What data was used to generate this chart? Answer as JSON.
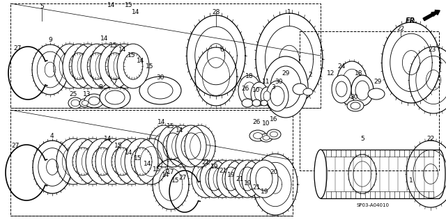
{
  "background_color": "#ffffff",
  "part_number_label": "SP03-A04010",
  "fr_label": "FR.",
  "fig_width": 6.4,
  "fig_height": 3.19,
  "dpi": 100
}
